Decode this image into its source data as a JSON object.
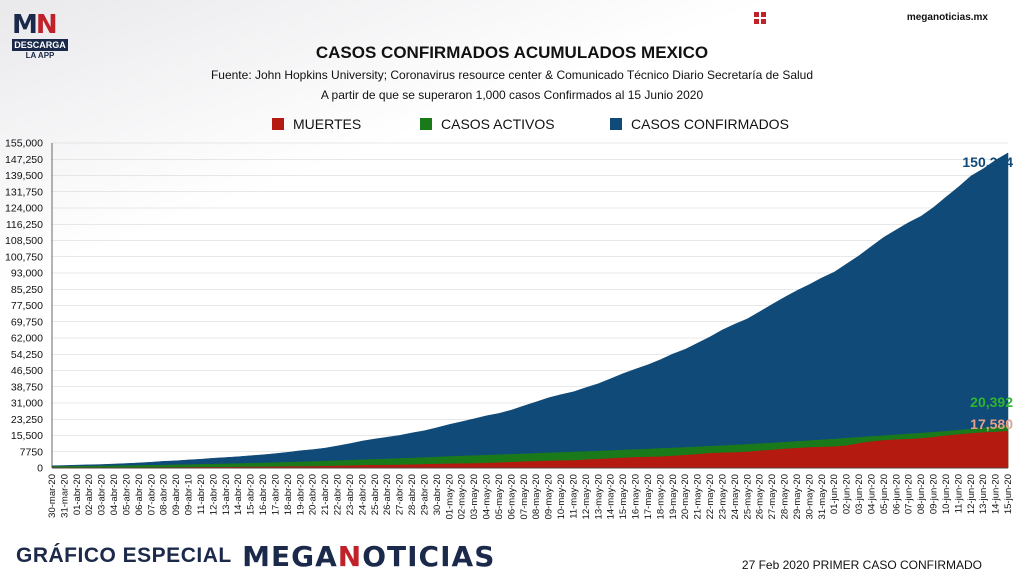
{
  "header": {
    "logo_letters_a": "M",
    "logo_letters_b": "N",
    "logo_descarga": "DESCARGA",
    "logo_app": "LA APP",
    "site_icon": "grid-logo-icon",
    "site_url": "meganoticias.mx"
  },
  "footer": {
    "brand_label": "GRÁFICO ESPECIAL",
    "brand_name_a": "MEGA",
    "brand_name_b": "N",
    "brand_name_c": "OTICIAS",
    "note": "27 Feb 2020 PRIMER CASO CONFIRMADO"
  },
  "colors": {
    "muertes": "#b51a10",
    "activos": "#1a7a1a",
    "confirmados": "#0f4a78",
    "label_confirmados": "#0f4a78",
    "label_activos": "#2fb52f",
    "label_muertes": "#e4a08a",
    "brand_navy": "#1b2a4a",
    "brand_red": "#c0222a"
  },
  "chart_data": {
    "type": "area",
    "title": "CASOS CONFIRMADOS ACUMULADOS MEXICO",
    "subtitle": "Fuente: John Hopkins University; Coronavirus resource center & Comunicado Técnico Diario Secretaría de Salud",
    "subtitle2": "A partir de que se superaron 1,000 casos Confirmados al 15 Junio 2020",
    "legend_position": "top",
    "grid": true,
    "ylim": [
      0,
      155000
    ],
    "y_ticks": [
      "0",
      "7750",
      "15,500",
      "23,250",
      "31,000",
      "38,750",
      "46,500",
      "54,250",
      "62,000",
      "69,750",
      "77,500",
      "85,250",
      "93,000",
      "100,750",
      "108,500",
      "116,250",
      "124,000",
      "131,750",
      "139,500",
      "147,250",
      "155,000"
    ],
    "x": [
      "30-mar-20",
      "31-mar-20",
      "01-abr-20",
      "02-abr-20",
      "03-abr-20",
      "04-abr-20",
      "05-abr-20",
      "06-abr-20",
      "07-abr-20",
      "08-abr-20",
      "09-abr-20",
      "09-abr-10",
      "11-abr-20",
      "12-abr-20",
      "13-abr-20",
      "14-abr-20",
      "15-abr-20",
      "16-abr-20",
      "17-abr-20",
      "18-abr-20",
      "19-abr-20",
      "20-abr-20",
      "21-abr-20",
      "22-abr-20",
      "23-abr-20",
      "24-abr-20",
      "25-abr-20",
      "26-abr-20",
      "27-abr-20",
      "28-abr-20",
      "29-abr-20",
      "30-abr-20",
      "01-may-20",
      "02-may-20",
      "03-may-20",
      "04-may-20",
      "05-may-20",
      "06-may-20",
      "07-may-20",
      "08-may-20",
      "09-may-20",
      "10-may-20",
      "11-may-20",
      "12-may-20",
      "13-may-20",
      "14-may-20",
      "15-may-20",
      "16-may-20",
      "17-may-20",
      "18-may-20",
      "19-may-20",
      "20-may-20",
      "21-may-20",
      "22-may-20",
      "23-may-20",
      "24-may-20",
      "25-may-20",
      "26-may-20",
      "27-may-20",
      "28-may-20",
      "29-may-20",
      "30-may-20",
      "31-may-20",
      "01-jun-20",
      "02-jun-20",
      "03-jun-20",
      "04-jun-20",
      "05-jun-20",
      "06-jun-20",
      "07-jun-20",
      "08-jun-20",
      "09-jun-20",
      "10-jun-20",
      "11-jun-20",
      "12-jun-20",
      "13-jun-20",
      "14-jun-20",
      "15-jun-20"
    ],
    "series": [
      {
        "name": "CASOS CONFIRMADOS",
        "color": "#0f4a78",
        "end_label": "150,264",
        "values": [
          1094,
          1215,
          1378,
          1510,
          1688,
          1890,
          2143,
          2439,
          2785,
          3181,
          3441,
          3844,
          4219,
          4661,
          5014,
          5399,
          5847,
          6297,
          6875,
          7497,
          8261,
          8772,
          9501,
          10544,
          11633,
          12872,
          13842,
          14677,
          15529,
          16752,
          17799,
          19224,
          20739,
          22088,
          23471,
          24905,
          26025,
          27634,
          29616,
          31522,
          33460,
          35022,
          36327,
          38324,
          40186,
          42595,
          45032,
          47144,
          49219,
          51633,
          54346,
          56594,
          59567,
          62527,
          65856,
          68620,
          71105,
          74560,
          78023,
          81400,
          84627,
          87512,
          90664,
          93435,
          97326,
          101238,
          105680,
          110026,
          113619,
          117103,
          120102,
          124301,
          129184,
          133974,
          139196,
          142690,
          146837,
          150264
        ]
      },
      {
        "name": "CASOS ACTIVOS",
        "color": "#1a7a1a",
        "end_label": "20,392",
        "values": [
          700,
          760,
          820,
          880,
          950,
          1020,
          1100,
          1180,
          1280,
          1380,
          1480,
          1580,
          1700,
          1820,
          1950,
          2080,
          2230,
          2380,
          2550,
          2720,
          2900,
          3080,
          3270,
          3470,
          3680,
          3900,
          4100,
          4300,
          4520,
          4740,
          4960,
          5220,
          5480,
          5680,
          5880,
          6100,
          6300,
          6520,
          6740,
          6960,
          7180,
          7400,
          7620,
          7840,
          8060,
          8300,
          8540,
          8780,
          9020,
          9280,
          9540,
          9800,
          10080,
          10360,
          10640,
          10940,
          11260,
          11580,
          11920,
          12260,
          12620,
          13000,
          13400,
          13800,
          14200,
          14600,
          15000,
          15400,
          15800,
          16200,
          16620,
          17060,
          17520,
          18000,
          18500,
          19050,
          19700,
          20392
        ]
      },
      {
        "name": "MUERTES",
        "color": "#b51a10",
        "end_label": "17,580",
        "values": [
          28,
          29,
          37,
          50,
          60,
          79,
          94,
          125,
          141,
          174,
          194,
          233,
          273,
          296,
          332,
          406,
          449,
          486,
          546,
          650,
          686,
          712,
          857,
          970,
          1069,
          1221,
          1305,
          1351,
          1434,
          1569,
          1732,
          1859,
          1972,
          2061,
          2154,
          2271,
          2507,
          2704,
          2961,
          3160,
          3353,
          3465,
          3573,
          3926,
          4220,
          4477,
          4767,
          5045,
          5177,
          5332,
          5666,
          6090,
          6510,
          6989,
          7179,
          7394,
          7633,
          8134,
          8597,
          9044,
          9415,
          9779,
          9930,
          10167,
          10637,
          11729,
          12545,
          13170,
          13511,
          13699,
          14053,
          14649,
          15357,
          15944,
          16448,
          16872,
          17141,
          17580
        ]
      }
    ]
  }
}
